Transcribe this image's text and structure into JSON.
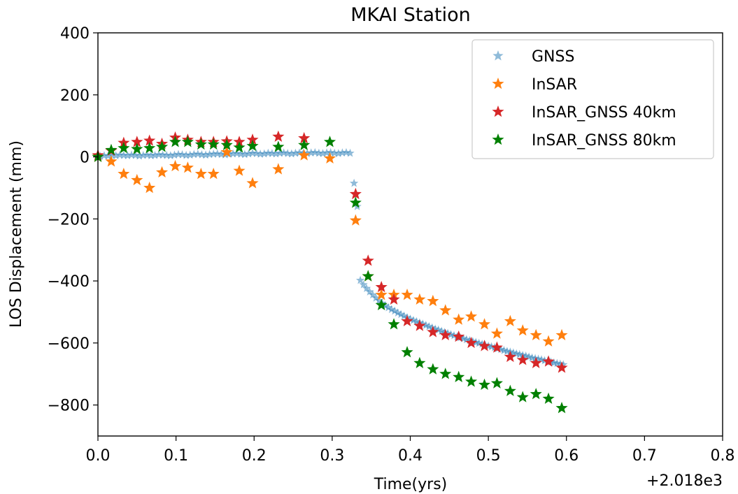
{
  "chart_data": {
    "type": "scatter",
    "title": "MKAI Station",
    "xlabel": "Time(yrs)",
    "ylabel": "LOS Displacement (mm)",
    "x_offset_label": "+2.018e3",
    "xlim": [
      0.0,
      0.8
    ],
    "ylim": [
      -900,
      400
    ],
    "x_ticks": [
      0.0,
      0.1,
      0.2,
      0.3,
      0.4,
      0.5,
      0.6,
      0.7,
      0.8
    ],
    "x_tick_labels": [
      "0.0",
      "0.1",
      "0.2",
      "0.3",
      "0.4",
      "0.5",
      "0.6",
      "0.7",
      "0.8"
    ],
    "y_ticks": [
      -800,
      -600,
      -400,
      -200,
      0,
      200,
      400
    ],
    "y_tick_labels": [
      "−800",
      "−600",
      "−400",
      "−200",
      "0",
      "200",
      "400"
    ],
    "grid": false,
    "legend_position": "top-right",
    "marker": "star",
    "series": [
      {
        "name": "GNSS",
        "color": "#1f77b4",
        "opacity": 0.5,
        "size": "small",
        "x": [
          0.003,
          0.008,
          0.013,
          0.018,
          0.023,
          0.028,
          0.033,
          0.038,
          0.043,
          0.048,
          0.053,
          0.058,
          0.063,
          0.068,
          0.073,
          0.078,
          0.083,
          0.088,
          0.093,
          0.098,
          0.103,
          0.108,
          0.113,
          0.118,
          0.123,
          0.128,
          0.133,
          0.138,
          0.143,
          0.148,
          0.153,
          0.158,
          0.163,
          0.168,
          0.173,
          0.178,
          0.183,
          0.188,
          0.193,
          0.198,
          0.203,
          0.208,
          0.213,
          0.218,
          0.223,
          0.228,
          0.233,
          0.238,
          0.243,
          0.248,
          0.253,
          0.258,
          0.263,
          0.268,
          0.273,
          0.278,
          0.283,
          0.288,
          0.293,
          0.298,
          0.303,
          0.308,
          0.313,
          0.318,
          0.323,
          0.328,
          0.332,
          0.336,
          0.34,
          0.344,
          0.348,
          0.352,
          0.356,
          0.36,
          0.364,
          0.368,
          0.372,
          0.376,
          0.38,
          0.384,
          0.388,
          0.392,
          0.396,
          0.4,
          0.404,
          0.408,
          0.412,
          0.416,
          0.42,
          0.424,
          0.428,
          0.432,
          0.436,
          0.44,
          0.444,
          0.448,
          0.452,
          0.456,
          0.46,
          0.464,
          0.468,
          0.472,
          0.476,
          0.48,
          0.484,
          0.488,
          0.492,
          0.496,
          0.5,
          0.504,
          0.508,
          0.512,
          0.516,
          0.52,
          0.524,
          0.528,
          0.532,
          0.536,
          0.54,
          0.544,
          0.548,
          0.552,
          0.556,
          0.56,
          0.564,
          0.568,
          0.572,
          0.576,
          0.58,
          0.584,
          0.588,
          0.592,
          0.596
        ],
        "y": [
          2,
          4,
          3,
          5,
          4,
          6,
          5,
          4,
          6,
          5,
          3,
          5,
          6,
          4,
          5,
          7,
          6,
          5,
          4,
          6,
          8,
          7,
          5,
          6,
          8,
          9,
          7,
          6,
          8,
          9,
          10,
          8,
          7,
          9,
          10,
          11,
          9,
          8,
          10,
          12,
          11,
          9,
          10,
          12,
          11,
          10,
          12,
          13,
          11,
          10,
          12,
          13,
          12,
          11,
          13,
          14,
          12,
          11,
          13,
          14,
          12,
          11,
          13,
          14,
          12,
          -85,
          -160,
          -398,
          -412,
          -424,
          -435,
          -445,
          -455,
          -463,
          -472,
          -480,
          -486,
          -492,
          -497,
          -503,
          -508,
          -513,
          -518,
          -523,
          -527,
          -531,
          -535,
          -539,
          -543,
          -547,
          -551,
          -555,
          -558,
          -562,
          -566,
          -569,
          -573,
          -576,
          -580,
          -583,
          -586,
          -589,
          -592,
          -595,
          -598,
          -601,
          -604,
          -607,
          -610,
          -612,
          -615,
          -618,
          -621,
          -624,
          -627,
          -629,
          -632,
          -635,
          -637,
          -640,
          -642,
          -645,
          -648,
          -650,
          -652,
          -654,
          -657,
          -659,
          -661,
          -664,
          -666,
          -668,
          -670
        ]
      },
      {
        "name": "InSAR",
        "color": "#ff7f0e",
        "opacity": 1,
        "size": "large",
        "x": [
          0.0,
          0.017,
          0.033,
          0.05,
          0.066,
          0.082,
          0.099,
          0.115,
          0.132,
          0.148,
          0.165,
          0.181,
          0.198,
          0.231,
          0.264,
          0.297,
          0.33,
          0.346,
          0.363,
          0.379,
          0.396,
          0.412,
          0.429,
          0.445,
          0.462,
          0.478,
          0.495,
          0.511,
          0.528,
          0.544,
          0.561,
          0.577,
          0.594
        ],
        "y": [
          0,
          -15,
          -55,
          -75,
          -100,
          -50,
          -30,
          -35,
          -55,
          -55,
          15,
          -45,
          -85,
          -40,
          5,
          -5,
          -205,
          -385,
          -445,
          -445,
          -445,
          -460,
          -465,
          -495,
          -525,
          -515,
          -540,
          -570,
          -530,
          -560,
          -575,
          -595,
          -575
        ]
      },
      {
        "name": "InSAR_GNSS 40km",
        "color": "#d62728",
        "opacity": 1,
        "size": "large",
        "x": [
          0.0,
          0.017,
          0.033,
          0.05,
          0.066,
          0.082,
          0.099,
          0.115,
          0.132,
          0.148,
          0.165,
          0.181,
          0.198,
          0.231,
          0.264,
          0.33,
          0.346,
          0.363,
          0.379,
          0.396,
          0.412,
          0.429,
          0.445,
          0.462,
          0.478,
          0.495,
          0.511,
          0.528,
          0.544,
          0.561,
          0.577,
          0.594
        ],
        "y": [
          5,
          20,
          45,
          48,
          52,
          42,
          62,
          55,
          48,
          48,
          50,
          48,
          55,
          65,
          60,
          -120,
          -335,
          -420,
          -460,
          -530,
          -545,
          -565,
          -575,
          -580,
          -600,
          -610,
          -615,
          -645,
          -655,
          -665,
          -660,
          -680
        ]
      },
      {
        "name": "InSAR_GNSS 80km",
        "color": "#008000",
        "opacity": 1,
        "size": "large",
        "x": [
          0.0,
          0.017,
          0.033,
          0.05,
          0.066,
          0.082,
          0.099,
          0.115,
          0.132,
          0.148,
          0.165,
          0.181,
          0.198,
          0.231,
          0.264,
          0.297,
          0.33,
          0.346,
          0.363,
          0.379,
          0.396,
          0.412,
          0.429,
          0.445,
          0.462,
          0.478,
          0.495,
          0.511,
          0.528,
          0.544,
          0.561,
          0.577,
          0.594
        ],
        "y": [
          0,
          22,
          28,
          25,
          28,
          32,
          48,
          48,
          40,
          40,
          38,
          30,
          35,
          32,
          38,
          48,
          -148,
          -385,
          -478,
          -540,
          -630,
          -665,
          -685,
          -700,
          -710,
          -725,
          -735,
          -730,
          -755,
          -775,
          -765,
          -780,
          -810
        ]
      }
    ]
  }
}
